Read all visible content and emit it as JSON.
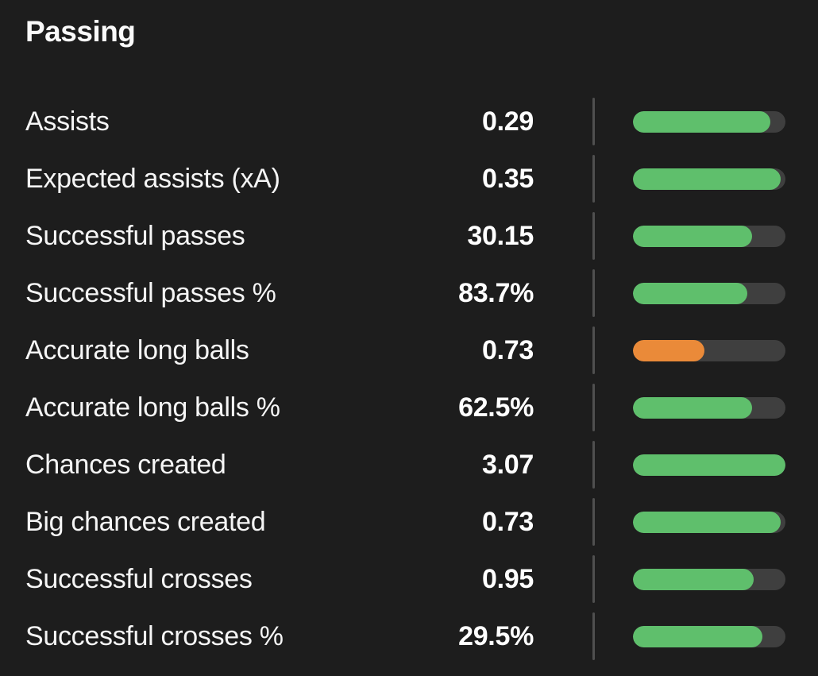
{
  "section": {
    "title": "Passing"
  },
  "colors": {
    "background": "#1d1d1d",
    "text": "#ffffff",
    "bar_track": "#3f3f3f",
    "divider": "#4f4f4f",
    "green": "#5fbf6c",
    "orange": "#ea8a39"
  },
  "stats": [
    {
      "label": "Assists",
      "value": "0.29",
      "bar_percent": 90,
      "bar_color": "green"
    },
    {
      "label": "Expected assists (xA)",
      "value": "0.35",
      "bar_percent": 97,
      "bar_color": "green"
    },
    {
      "label": "Successful passes",
      "value": "30.15",
      "bar_percent": 78,
      "bar_color": "green"
    },
    {
      "label": "Successful passes %",
      "value": "83.7%",
      "bar_percent": 75,
      "bar_color": "green"
    },
    {
      "label": "Accurate long balls",
      "value": "0.73",
      "bar_percent": 47,
      "bar_color": "orange"
    },
    {
      "label": "Accurate long balls %",
      "value": "62.5%",
      "bar_percent": 78,
      "bar_color": "green"
    },
    {
      "label": "Chances created",
      "value": "3.07",
      "bar_percent": 100,
      "bar_color": "green"
    },
    {
      "label": "Big chances created",
      "value": "0.73",
      "bar_percent": 97,
      "bar_color": "green"
    },
    {
      "label": "Successful crosses",
      "value": "0.95",
      "bar_percent": 79,
      "bar_color": "green"
    },
    {
      "label": "Successful crosses %",
      "value": "29.5%",
      "bar_percent": 85,
      "bar_color": "green"
    }
  ]
}
